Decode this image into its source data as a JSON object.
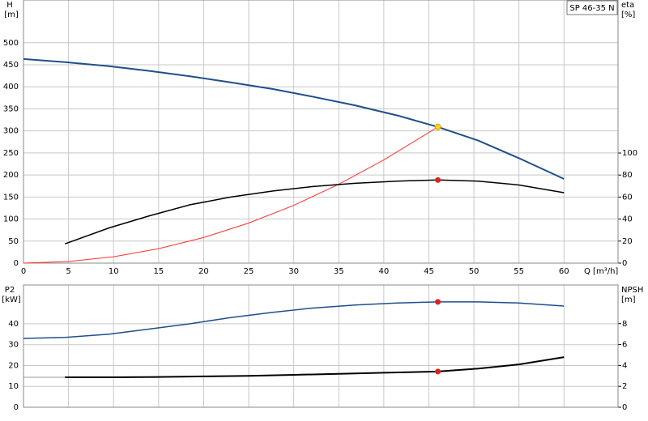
{
  "chart_data": [
    {
      "type": "line",
      "label": "SP 46-35 N",
      "y_label": "H",
      "y_unit": "[m]",
      "y2_label": "eta",
      "y2_unit": "[%]",
      "x_label": "Q [m³/h]",
      "xlim": [
        0,
        66
      ],
      "xticks": [
        0,
        5,
        10,
        15,
        20,
        25,
        30,
        35,
        40,
        45,
        50,
        55,
        60
      ],
      "ylim": [
        0,
        597
      ],
      "yticks": [
        0,
        50,
        100,
        150,
        200,
        250,
        300,
        350,
        400,
        450,
        500
      ],
      "y2lim": [
        0,
        239
      ],
      "y2ticks": [
        0,
        20,
        40,
        60,
        80,
        100
      ],
      "grid": true,
      "series": [
        {
          "color": "#1f4e8c",
          "width": 2,
          "axis": "y",
          "x": [
            0,
            4.6,
            9.5,
            14,
            18.5,
            23,
            27.7,
            32,
            36.8,
            41.5,
            46,
            50.5,
            55,
            60
          ],
          "values": [
            463,
            456,
            447,
            436,
            424,
            410,
            395,
            378,
            358,
            335,
            309,
            278,
            238,
            191
          ]
        },
        {
          "color": "#ff3030",
          "width": 1,
          "axis": "y",
          "x": [
            0,
            5,
            10,
            15,
            20,
            25,
            30,
            35,
            40,
            46
          ],
          "values": [
            0,
            3.6,
            14.6,
            32.8,
            58,
            91,
            131,
            179,
            234,
            309
          ]
        },
        {
          "color": "#000000",
          "width": 1.5,
          "axis": "y2",
          "x": [
            4.6,
            9.5,
            14,
            18.5,
            23,
            27.7,
            32,
            36.8,
            41.5,
            46,
            50.5,
            55,
            60
          ],
          "values": [
            17.5,
            32,
            43,
            53,
            60,
            65.5,
            69.5,
            72.5,
            74.5,
            75.5,
            74.5,
            71,
            64
          ]
        }
      ],
      "points": [
        {
          "x": 46,
          "y": 309,
          "axis": "y",
          "color": "#ffd21f"
        },
        {
          "x": 46,
          "y": 75.5,
          "axis": "y2",
          "color": "#e02020"
        }
      ]
    },
    {
      "type": "line",
      "y_label": "P2",
      "y_unit": "[kW]",
      "y2_label": "NPSH",
      "y2_unit": "[m]",
      "xlim": [
        0,
        66
      ],
      "ylim": [
        0,
        58.6
      ],
      "yticks": [
        0,
        10,
        20,
        30,
        40
      ],
      "y2lim": [
        0,
        11.7
      ],
      "y2ticks": [
        0,
        2,
        4,
        6,
        8
      ],
      "grid": true,
      "series": [
        {
          "color": "#1f4e8c",
          "width": 1.5,
          "axis": "y",
          "x": [
            0,
            4.6,
            9.5,
            14,
            18.5,
            23,
            27.7,
            32,
            36.8,
            41.5,
            46,
            50.5,
            55,
            60
          ],
          "values": [
            33,
            33.5,
            35,
            37.5,
            40,
            43,
            45.5,
            47.5,
            49,
            50,
            50.5,
            50.5,
            50,
            48.5
          ]
        },
        {
          "color": "#999999",
          "width": 1,
          "axis": "y2",
          "x": [
            0,
            4.6
          ],
          "values": [
            2.87,
            2.87
          ]
        },
        {
          "color": "#000000",
          "width": 2,
          "axis": "y2",
          "x": [
            4.6,
            10,
            15,
            20,
            25,
            30,
            35,
            40,
            46,
            50.5,
            55,
            60
          ],
          "values": [
            2.87,
            2.87,
            2.9,
            2.95,
            3.0,
            3.1,
            3.2,
            3.3,
            3.42,
            3.7,
            4.1,
            4.8
          ]
        }
      ],
      "points": [
        {
          "x": 46,
          "y": 50.5,
          "axis": "y",
          "color": "#e02020"
        },
        {
          "x": 46,
          "y": 3.42,
          "axis": "y2",
          "color": "#e02020"
        }
      ]
    }
  ]
}
